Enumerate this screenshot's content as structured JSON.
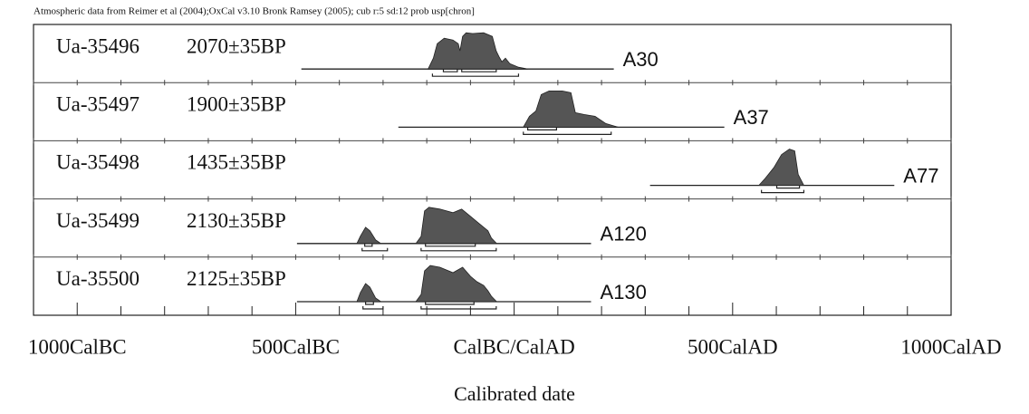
{
  "chart_data": {
    "type": "multiplot",
    "title": "Atmospheric data from Reimer et al (2004);OxCal v3.10 Bronk Ramsey (2005); cub r:5 sd:12 prob usp[chron]",
    "xlabel": "Calibrated date",
    "xlim": [
      -1100,
      1000
    ],
    "xticks": [
      {
        "value": -1000,
        "label": "1000CalBC"
      },
      {
        "value": -500,
        "label": "500CalBC"
      },
      {
        "value": 0,
        "label": "CalBC/CalAD"
      },
      {
        "value": 500,
        "label": "500CalAD"
      },
      {
        "value": 1000,
        "label": "1000CalAD"
      }
    ],
    "xminorticks": [
      -1100,
      -900,
      -800,
      -700,
      -600,
      -400,
      -300,
      -200,
      -100,
      100,
      200,
      300,
      400,
      600,
      700,
      800,
      900
    ],
    "color": "#555555",
    "rows": [
      {
        "lab": "Ua-35496",
        "date": "2070±35BP",
        "sample": "A30",
        "extent": [
          -487,
          228
        ],
        "dist": {
          "x": [
            -197,
            -185,
            -176,
            -160,
            -140,
            -128,
            -124,
            -118,
            -110,
            -95,
            -70,
            -50,
            -41,
            -35,
            -28,
            -20,
            -10,
            0,
            10,
            31
          ],
          "y": [
            0,
            0.3,
            0.7,
            0.85,
            0.8,
            0.7,
            0.5,
            0.9,
            1,
            0.98,
            1,
            0.9,
            0.5,
            0.35,
            0.2,
            0.3,
            0.15,
            0.1,
            0.05,
            0
          ]
        },
        "range68": [
          [
            -162,
            -130
          ],
          [
            -120,
            -41
          ]
        ],
        "range95": [
          [
            -187,
            10
          ]
        ]
      },
      {
        "lab": "Ua-35497",
        "date": "1900±35BP",
        "sample": "A37",
        "extent": [
          -265,
          481
        ],
        "dist": {
          "x": [
            21,
            35,
            50,
            62,
            80,
            110,
            130,
            140,
            160,
            185,
            210,
            238
          ],
          "y": [
            0,
            0.3,
            0.45,
            0.9,
            1,
            1,
            0.95,
            0.4,
            0.35,
            0.3,
            0.1,
            0
          ]
        },
        "range68": [
          [
            31,
            97
          ]
        ],
        "range95": [
          [
            21,
            222
          ]
        ]
      },
      {
        "lab": "Ua-35498",
        "date": "1435±35BP",
        "sample": "A77",
        "extent": [
          311,
          870
        ],
        "dist": {
          "x": [
            560,
            575,
            595,
            612,
            630,
            642,
            650,
            663
          ],
          "y": [
            0,
            0.2,
            0.5,
            0.85,
            1,
            0.95,
            0.3,
            0
          ]
        },
        "range68": [
          [
            601,
            653
          ]
        ],
        "range95": [
          [
            566,
            663
          ]
        ]
      },
      {
        "lab": "Ua-35499",
        "date": "2130±35BP",
        "sample": "A120",
        "extent": [
          -497,
          176
        ],
        "dist": {
          "x": [
            -360,
            -352,
            -340,
            -330,
            -317,
            -305,
            -225,
            -213,
            -205,
            -195,
            -170,
            -140,
            -120,
            -100,
            -85,
            -70,
            -60,
            -52,
            -40
          ],
          "y": [
            0,
            0.2,
            0.45,
            0.35,
            0.1,
            0,
            0,
            0.2,
            0.9,
            1,
            0.95,
            0.85,
            0.95,
            0.75,
            0.6,
            0.45,
            0.35,
            0.15,
            0
          ]
        },
        "range68": [
          [
            -342,
            -325
          ],
          [
            -203,
            -89
          ]
        ],
        "range95": [
          [
            -348,
            -290
          ],
          [
            -213,
            -41
          ]
        ]
      },
      {
        "lab": "Ua-35500",
        "date": "2125±35BP",
        "sample": "A130",
        "extent": [
          -497,
          176
        ],
        "dist": {
          "x": [
            -360,
            -352,
            -340,
            -330,
            -317,
            -305,
            -225,
            -213,
            -205,
            -192,
            -170,
            -140,
            -118,
            -100,
            -85,
            -70,
            -60,
            -52,
            -40
          ],
          "y": [
            0,
            0.25,
            0.5,
            0.4,
            0.1,
            0,
            0,
            0.2,
            0.85,
            1,
            0.95,
            0.8,
            0.95,
            0.7,
            0.55,
            0.45,
            0.3,
            0.15,
            0
          ]
        },
        "range68": [
          [
            -340,
            -322
          ],
          [
            -203,
            -92
          ]
        ],
        "range95": [
          [
            -346,
            -300
          ],
          [
            -213,
            -41
          ]
        ]
      }
    ]
  }
}
